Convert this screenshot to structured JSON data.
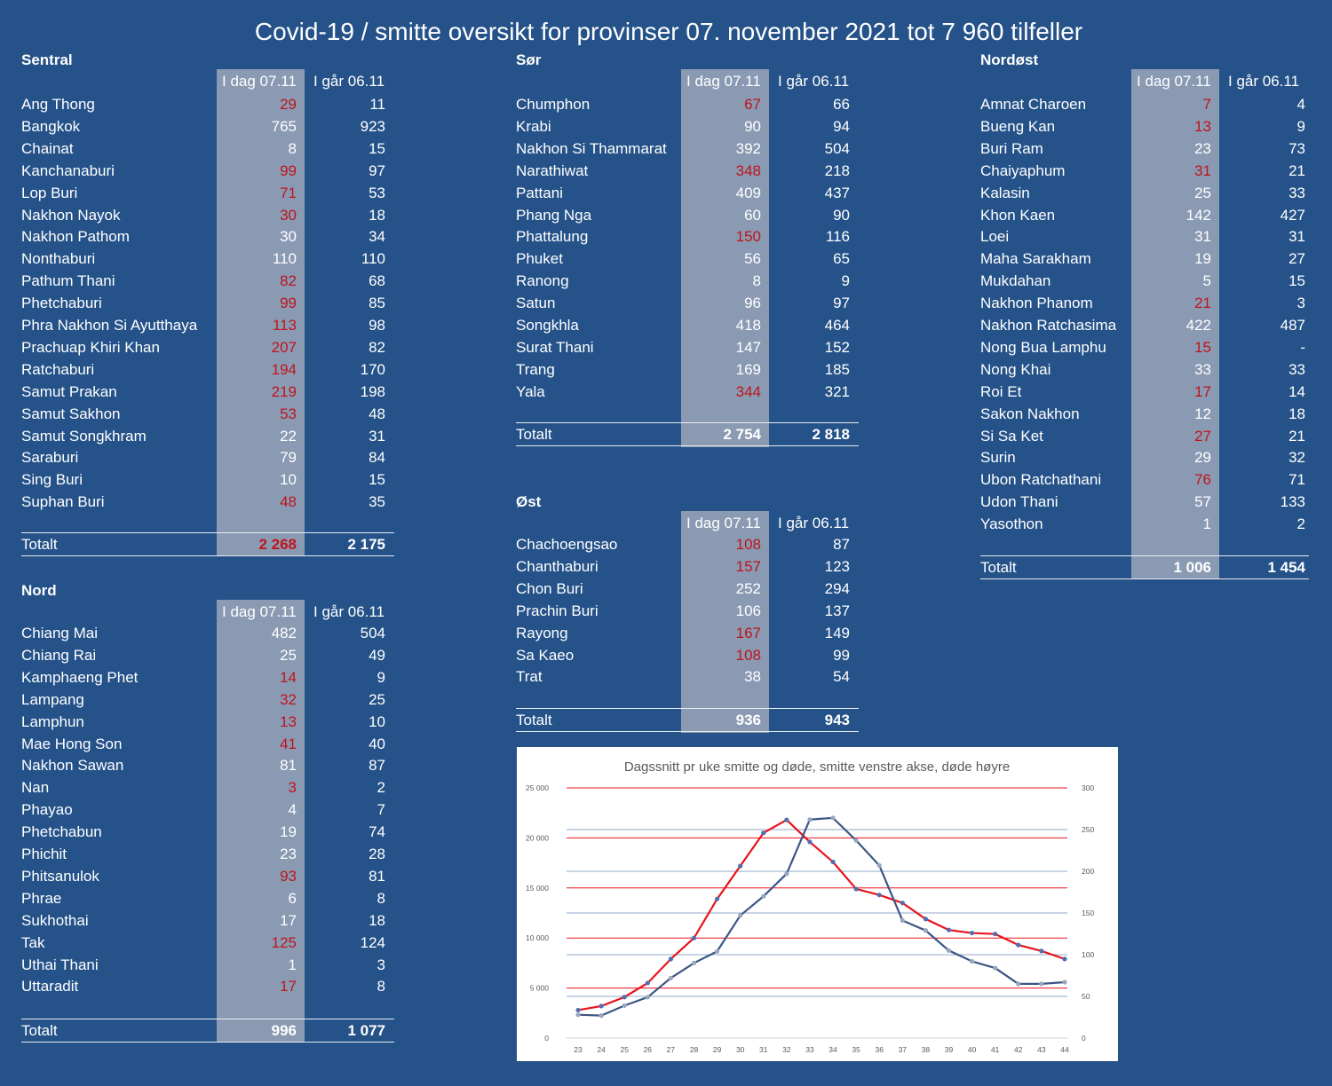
{
  "title": "Covid-19 / smitte oversikt for provinser 07. november 2021 tot 7 960 tilfeller",
  "colors": {
    "background": "#255289",
    "shade": "#8a9ab3",
    "highlight": "#c0141b",
    "cases_line": "#e8131b",
    "deaths_line": "#3a5684"
  },
  "header_today": "I dag 07.11",
  "header_yesterday": "I går 06.11",
  "total_label": "Totalt",
  "regions": {
    "sentral": {
      "title": "Sentral",
      "rows": [
        {
          "name": "Ang Thong",
          "today": "29",
          "yesterday": "11",
          "up": true
        },
        {
          "name": "Bangkok",
          "today": "765",
          "yesterday": "923",
          "up": false
        },
        {
          "name": "Chainat",
          "today": "8",
          "yesterday": "15",
          "up": false
        },
        {
          "name": "Kanchanaburi",
          "today": "99",
          "yesterday": "97",
          "up": true
        },
        {
          "name": "Lop Buri",
          "today": "71",
          "yesterday": "53",
          "up": true
        },
        {
          "name": "Nakhon Nayok",
          "today": "30",
          "yesterday": "18",
          "up": true
        },
        {
          "name": "Nakhon Pathom",
          "today": "30",
          "yesterday": "34",
          "up": false
        },
        {
          "name": "Nonthaburi",
          "today": "110",
          "yesterday": "110",
          "up": false
        },
        {
          "name": "Pathum Thani",
          "today": "82",
          "yesterday": "68",
          "up": true
        },
        {
          "name": "Phetchaburi",
          "today": "99",
          "yesterday": "85",
          "up": true
        },
        {
          "name": "Phra Nakhon Si Ayutthaya",
          "today": "113",
          "yesterday": "98",
          "up": true
        },
        {
          "name": "Prachuap Khiri Khan",
          "today": "207",
          "yesterday": "82",
          "up": true
        },
        {
          "name": "Ratchaburi",
          "today": "194",
          "yesterday": "170",
          "up": true
        },
        {
          "name": "Samut Prakan",
          "today": "219",
          "yesterday": "198",
          "up": true
        },
        {
          "name": "Samut Sakhon",
          "today": "53",
          "yesterday": "48",
          "up": true
        },
        {
          "name": "Samut Songkhram",
          "today": "22",
          "yesterday": "31",
          "up": false
        },
        {
          "name": "Saraburi",
          "today": "79",
          "yesterday": "84",
          "up": false
        },
        {
          "name": "Sing Buri",
          "today": "10",
          "yesterday": "15",
          "up": false
        },
        {
          "name": "Suphan Buri",
          "today": "48",
          "yesterday": "35",
          "up": true
        }
      ],
      "total": {
        "today": "2 268",
        "yesterday": "2 175",
        "up": true
      }
    },
    "nord": {
      "title": "Nord",
      "rows": [
        {
          "name": "Chiang Mai",
          "today": "482",
          "yesterday": "504",
          "up": false
        },
        {
          "name": "Chiang Rai",
          "today": "25",
          "yesterday": "49",
          "up": false
        },
        {
          "name": "Kamphaeng Phet",
          "today": "14",
          "yesterday": "9",
          "up": true
        },
        {
          "name": "Lampang",
          "today": "32",
          "yesterday": "25",
          "up": true
        },
        {
          "name": "Lamphun",
          "today": "13",
          "yesterday": "10",
          "up": true
        },
        {
          "name": "Mae Hong Son",
          "today": "41",
          "yesterday": "40",
          "up": true
        },
        {
          "name": "Nakhon Sawan",
          "today": "81",
          "yesterday": "87",
          "up": false
        },
        {
          "name": "Nan",
          "today": "3",
          "yesterday": "2",
          "up": true
        },
        {
          "name": "Phayao",
          "today": "4",
          "yesterday": "7",
          "up": false
        },
        {
          "name": "Phetchabun",
          "today": "19",
          "yesterday": "74",
          "up": false
        },
        {
          "name": "Phichit",
          "today": "23",
          "yesterday": "28",
          "up": false
        },
        {
          "name": "Phitsanulok",
          "today": "93",
          "yesterday": "81",
          "up": true
        },
        {
          "name": "Phrae",
          "today": "6",
          "yesterday": "8",
          "up": false
        },
        {
          "name": "Sukhothai",
          "today": "17",
          "yesterday": "18",
          "up": false
        },
        {
          "name": "Tak",
          "today": "125",
          "yesterday": "124",
          "up": true
        },
        {
          "name": "Uthai Thani",
          "today": "1",
          "yesterday": "3",
          "up": false
        },
        {
          "name": "Uttaradit",
          "today": "17",
          "yesterday": "8",
          "up": true
        }
      ],
      "total": {
        "today": "996",
        "yesterday": "1 077",
        "up": false
      }
    },
    "sor": {
      "title": "Sør",
      "rows": [
        {
          "name": "Chumphon",
          "today": "67",
          "yesterday": "66",
          "up": true
        },
        {
          "name": "Krabi",
          "today": "90",
          "yesterday": "94",
          "up": false
        },
        {
          "name": "Nakhon Si Thammarat",
          "today": "392",
          "yesterday": "504",
          "up": false
        },
        {
          "name": "Narathiwat",
          "today": "348",
          "yesterday": "218",
          "up": true
        },
        {
          "name": "Pattani",
          "today": "409",
          "yesterday": "437",
          "up": false
        },
        {
          "name": "Phang Nga",
          "today": "60",
          "yesterday": "90",
          "up": false
        },
        {
          "name": "Phattalung",
          "today": "150",
          "yesterday": "116",
          "up": true
        },
        {
          "name": "Phuket",
          "today": "56",
          "yesterday": "65",
          "up": false
        },
        {
          "name": "Ranong",
          "today": "8",
          "yesterday": "9",
          "up": false
        },
        {
          "name": "Satun",
          "today": "96",
          "yesterday": "97",
          "up": false
        },
        {
          "name": "Songkhla",
          "today": "418",
          "yesterday": "464",
          "up": false
        },
        {
          "name": "Surat Thani",
          "today": "147",
          "yesterday": "152",
          "up": false
        },
        {
          "name": "Trang",
          "today": "169",
          "yesterday": "185",
          "up": false
        },
        {
          "name": "Yala",
          "today": "344",
          "yesterday": "321",
          "up": true
        }
      ],
      "total": {
        "today": "2 754",
        "yesterday": "2 818",
        "up": false
      }
    },
    "ost": {
      "title": "Øst",
      "rows": [
        {
          "name": "Chachoengsao",
          "today": "108",
          "yesterday": "87",
          "up": true
        },
        {
          "name": "Chanthaburi",
          "today": "157",
          "yesterday": "123",
          "up": true
        },
        {
          "name": "Chon Buri",
          "today": "252",
          "yesterday": "294",
          "up": false
        },
        {
          "name": "Prachin Buri",
          "today": "106",
          "yesterday": "137",
          "up": false
        },
        {
          "name": "Rayong",
          "today": "167",
          "yesterday": "149",
          "up": true
        },
        {
          "name": "Sa Kaeo",
          "today": "108",
          "yesterday": "99",
          "up": true
        },
        {
          "name": "Trat",
          "today": "38",
          "yesterday": "54",
          "up": false
        }
      ],
      "total": {
        "today": "936",
        "yesterday": "943",
        "up": false
      }
    },
    "nordost": {
      "title": "Nordøst",
      "rows": [
        {
          "name": "Amnat Charoen",
          "today": "7",
          "yesterday": "4",
          "up": true
        },
        {
          "name": "Bueng Kan",
          "today": "13",
          "yesterday": "9",
          "up": true
        },
        {
          "name": "Buri Ram",
          "today": "23",
          "yesterday": "73",
          "up": false
        },
        {
          "name": "Chaiyaphum",
          "today": "31",
          "yesterday": "21",
          "up": true
        },
        {
          "name": "Kalasin",
          "today": "25",
          "yesterday": "33",
          "up": false
        },
        {
          "name": "Khon Kaen",
          "today": "142",
          "yesterday": "427",
          "up": false
        },
        {
          "name": "Loei",
          "today": "31",
          "yesterday": "31",
          "up": false
        },
        {
          "name": "Maha Sarakham",
          "today": "19",
          "yesterday": "27",
          "up": false
        },
        {
          "name": "Mukdahan",
          "today": "5",
          "yesterday": "15",
          "up": false
        },
        {
          "name": "Nakhon Phanom",
          "today": "21",
          "yesterday": "3",
          "up": true
        },
        {
          "name": "Nakhon Ratchasima",
          "today": "422",
          "yesterday": "487",
          "up": false
        },
        {
          "name": "Nong Bua Lamphu",
          "today": "15",
          "yesterday": "-",
          "up": true
        },
        {
          "name": "Nong Khai",
          "today": "33",
          "yesterday": "33",
          "up": false
        },
        {
          "name": "Roi Et",
          "today": "17",
          "yesterday": "14",
          "up": true
        },
        {
          "name": "Sakon Nakhon",
          "today": "12",
          "yesterday": "18",
          "up": false
        },
        {
          "name": "Si Sa Ket",
          "today": "27",
          "yesterday": "21",
          "up": true
        },
        {
          "name": "Surin",
          "today": "29",
          "yesterday": "32",
          "up": false
        },
        {
          "name": "Ubon Ratchathani",
          "today": "76",
          "yesterday": "71",
          "up": true
        },
        {
          "name": "Udon Thani",
          "today": "57",
          "yesterday": "133",
          "up": false
        },
        {
          "name": "Yasothon",
          "today": "1",
          "yesterday": "2",
          "up": false
        }
      ],
      "total": {
        "today": "1 006",
        "yesterday": "1 454",
        "up": false
      }
    }
  },
  "chart_data": {
    "type": "line",
    "title": "Dagssnitt pr uke smitte og døde, smitte venstre akse, døde høyre",
    "x": [
      23,
      24,
      25,
      26,
      27,
      28,
      29,
      30,
      31,
      32,
      33,
      34,
      35,
      36,
      37,
      38,
      39,
      40,
      41,
      42,
      43,
      44
    ],
    "x_tick_labels": [
      "23",
      "24",
      "25",
      "26",
      "27",
      "28",
      "29",
      "30",
      "31",
      "32",
      "33",
      "34",
      "35",
      "36",
      "37",
      "38",
      "39",
      "40",
      "41",
      "42",
      "43",
      "44"
    ],
    "ylim_left": [
      0,
      25000
    ],
    "yticks_left": [
      "0",
      "5 000",
      "10 000",
      "15 000",
      "20 000",
      "25 000"
    ],
    "ylim_right": [
      0,
      300
    ],
    "yticks_right": [
      "0",
      "50",
      "100",
      "150",
      "200",
      "250",
      "300"
    ],
    "series": [
      {
        "axis": "left",
        "color": "#e8131b",
        "values": [
          2800,
          3200,
          4100,
          5500,
          7900,
          10000,
          13900,
          17200,
          20500,
          21800,
          19600,
          17600,
          14900,
          14300,
          13500,
          11900,
          10800,
          10500,
          10400,
          9300,
          8700,
          7900
        ]
      },
      {
        "axis": "right",
        "color": "#3a5684",
        "values": [
          28,
          27,
          39,
          49,
          72,
          90,
          104,
          147,
          170,
          197,
          262,
          264,
          237,
          207,
          141,
          129,
          105,
          92,
          84,
          65,
          65,
          67
        ]
      }
    ],
    "grid": true
  }
}
